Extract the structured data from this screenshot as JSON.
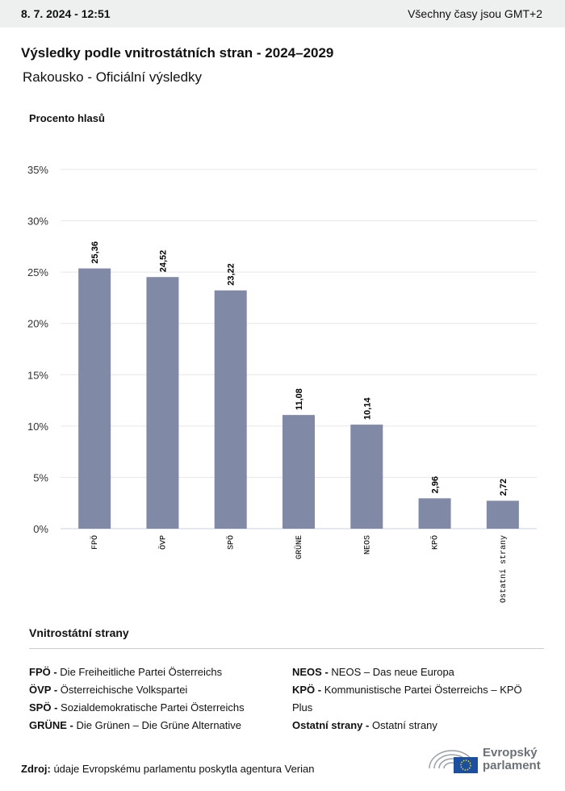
{
  "header": {
    "date": "8. 7. 2024 - 12:51",
    "timezone": "Všechny časy jsou GMT+2"
  },
  "title": "Výsledky podle vnitrostátních stran - 2024–2029",
  "subtitle": "Rakousko - Oficiální výsledky",
  "chart_data": {
    "type": "bar",
    "ylabel": "Procento hlasů",
    "ylim": [
      0,
      35
    ],
    "yticks": [
      "0%",
      "5%",
      "10%",
      "15%",
      "20%",
      "25%",
      "30%",
      "35%"
    ],
    "grid": true,
    "bar_color": "#8089a6",
    "categories": [
      "FPÖ",
      "ÖVP",
      "SPÖ",
      "GRÜNE",
      "NEOS",
      "KPÖ",
      "Ostatní strany"
    ],
    "values": [
      25.36,
      24.52,
      23.22,
      11.08,
      10.14,
      2.96,
      2.72
    ],
    "labels": [
      "25,36",
      "24,52",
      "23,22",
      "11,08",
      "10,14",
      "2,96",
      "2,72"
    ]
  },
  "legend": {
    "title": "Vnitrostátní strany",
    "items": [
      {
        "abbr": "FPÖ -",
        "name": "Die Freiheitliche Partei Österreichs"
      },
      {
        "abbr": "ÖVP -",
        "name": "Österreichische Volkspartei"
      },
      {
        "abbr": "SPÖ -",
        "name": "Sozialdemokratische Partei Österreichs"
      },
      {
        "abbr": "GRÜNE -",
        "name": "Die Grünen – Die Grüne Alternative"
      },
      {
        "abbr": "NEOS -",
        "name": "NEOS – Das neue Europa"
      },
      {
        "abbr": "KPÖ -",
        "name": "Kommunistische Partei Österreichs – KPÖ Plus"
      },
      {
        "abbr": "Ostatní strany -",
        "name": "Ostatní strany"
      }
    ]
  },
  "source": {
    "label": "Zdroj:",
    "text": "údaje Evropskému parlamentu poskytla agentura Verian"
  },
  "logo": {
    "line1": "Evropský",
    "line2": "parlament"
  }
}
